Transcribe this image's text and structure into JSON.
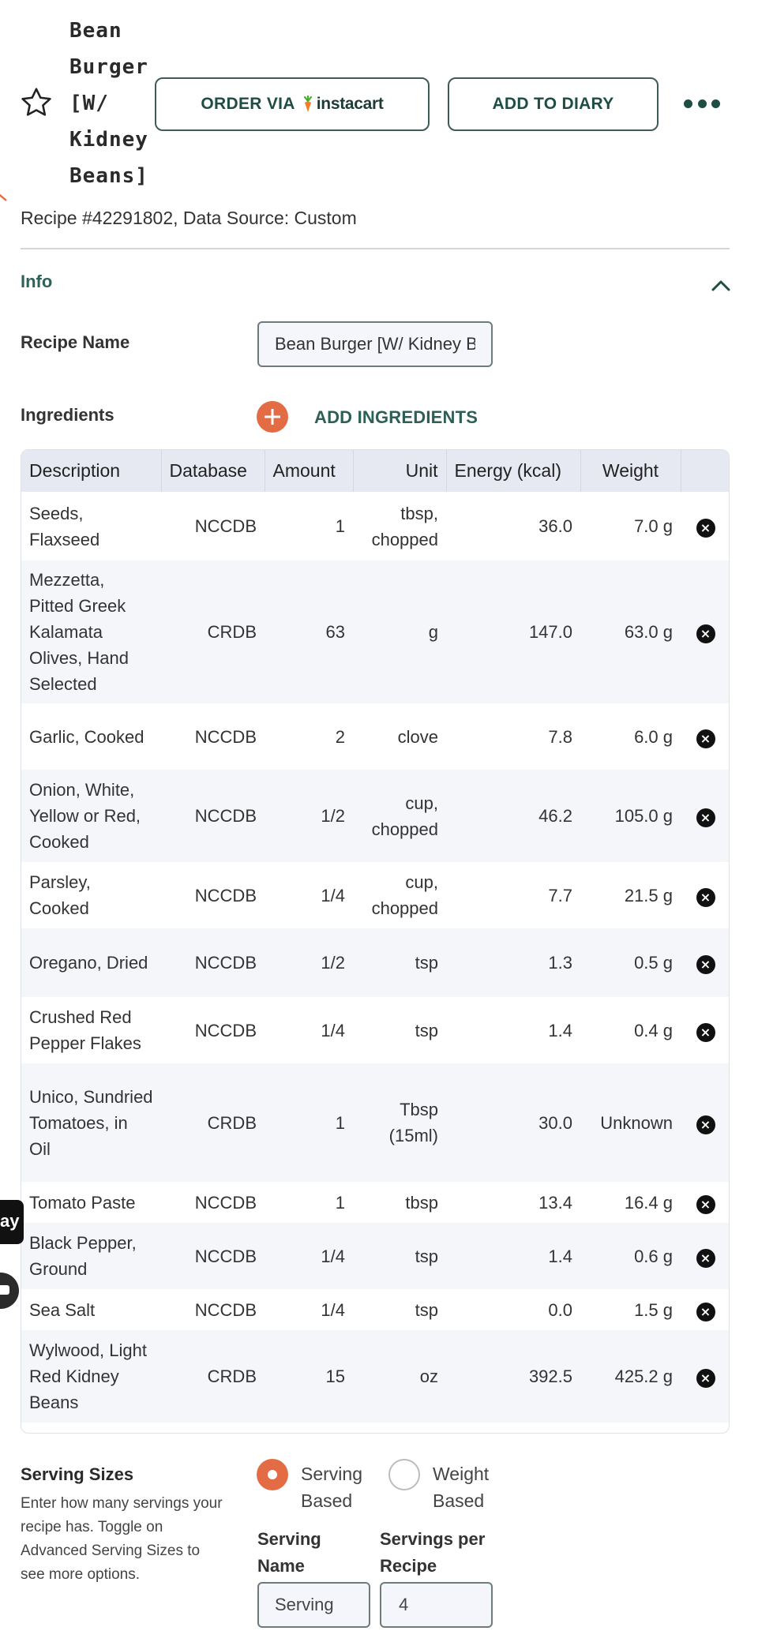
{
  "header": {
    "title": "Bean Burger [W/ Kidney Beans]",
    "title_lines": [
      "Bean",
      "Burger",
      "[W/",
      "Kidney",
      "Beans]"
    ],
    "order_label": "ORDER VIA",
    "instacart_label": "instacart",
    "diary_label": "ADD TO DIARY",
    "meta": "Recipe #42291802, Data Source: Custom"
  },
  "info": {
    "section_label": "Info",
    "recipe_name_label": "Recipe Name",
    "recipe_name_value": "Bean Burger [W/ Kidney Beans]",
    "ingredients_label": "Ingredients",
    "add_ingredients_label": "ADD INGREDIENTS"
  },
  "table": {
    "headers": [
      "Description",
      "Database",
      "Amount",
      "Unit",
      "Energy (kcal)",
      "Weight"
    ],
    "rows": [
      {
        "description": "Seeds, Flaxseed",
        "database": "NCCDB",
        "amount": "1",
        "unit": "tbsp, chopped",
        "energy": "36.0",
        "weight": "7.0 g"
      },
      {
        "description": "Mezzetta, Pitted Greek Kalamata Olives, Hand Selected",
        "database": "CRDB",
        "amount": "63",
        "unit": "g",
        "energy": "147.0",
        "weight": "63.0 g"
      },
      {
        "description": "Garlic, Cooked",
        "database": "NCCDB",
        "amount": "2",
        "unit": "clove",
        "energy": "7.8",
        "weight": "6.0 g"
      },
      {
        "description": "Onion, White, Yellow or Red, Cooked",
        "database": "NCCDB",
        "amount": "1/2",
        "unit": "cup, chopped",
        "energy": "46.2",
        "weight": "105.0 g"
      },
      {
        "description": "Parsley, Cooked",
        "database": "NCCDB",
        "amount": "1/4",
        "unit": "cup, chopped",
        "energy": "7.7",
        "weight": "21.5 g"
      },
      {
        "description": "Oregano, Dried",
        "database": "NCCDB",
        "amount": "1/2",
        "unit": "tsp",
        "energy": "1.3",
        "weight": "0.5 g"
      },
      {
        "description": "Crushed Red Pepper Flakes",
        "database": "NCCDB",
        "amount": "1/4",
        "unit": "tsp",
        "energy": "1.4",
        "weight": "0.4 g"
      },
      {
        "description": "Unico, Sundried Tomatoes, in Oil",
        "database": "CRDB",
        "amount": "1",
        "unit": "Tbsp (15ml)",
        "energy": "30.0",
        "weight": "Unknown"
      },
      {
        "description": "Tomato Paste",
        "database": "NCCDB",
        "amount": "1",
        "unit": "tbsp",
        "energy": "13.4",
        "weight": "16.4 g"
      },
      {
        "description": "Black Pepper, Ground",
        "database": "NCCDB",
        "amount": "1/4",
        "unit": "tsp",
        "energy": "1.4",
        "weight": "0.6 g"
      },
      {
        "description": "Sea Salt",
        "database": "NCCDB",
        "amount": "1/4",
        "unit": "tsp",
        "energy": "0.0",
        "weight": "1.5 g"
      },
      {
        "description": "Wylwood, Light Red Kidney Beans",
        "database": "CRDB",
        "amount": "15",
        "unit": "oz",
        "energy": "392.5",
        "weight": "425.2 g"
      }
    ],
    "remove_glyph": "×"
  },
  "edge": {
    "pay_fragment": "ay"
  },
  "serving": {
    "title": "Serving Sizes",
    "description": "Enter how many servings your recipe has. Toggle on Advanced Serving Sizes to see more options.",
    "option_serving_lines": [
      "Serving",
      "Based"
    ],
    "option_weight_lines": [
      "Weight",
      "Based"
    ],
    "selected": "Serving Based",
    "serving_name_label_lines": [
      "Serving",
      "Name"
    ],
    "servings_per_recipe_label_lines": [
      "Servings per",
      "Recipe"
    ],
    "serving_name_value": "Serving",
    "servings_per_recipe_value": "4"
  },
  "colors": {
    "accent_orange": "#e46c44",
    "brand_green": "#1e4d44",
    "instacart_carrot": "#43b02a"
  },
  "icons": [
    "star-icon",
    "instacart-carrot-icon",
    "more-icon",
    "chevron-up-icon",
    "plus-icon",
    "close-icon",
    "chat-icon"
  ]
}
